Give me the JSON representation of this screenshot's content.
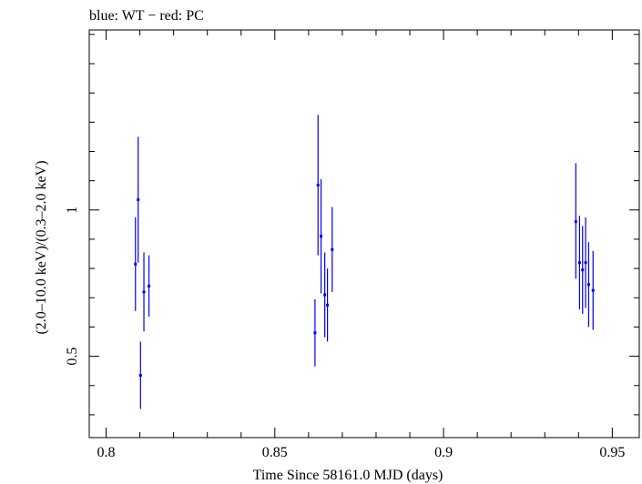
{
  "chart_data": {
    "type": "scatter",
    "title": "blue: WT − red: PC",
    "xlabel": "Time Since 58161.0 MJD (days)",
    "ylabel": "(2.0–10.0 keV)/(0.3–2.0 keV)",
    "xlim": [
      0.795,
      0.958
    ],
    "ylim": [
      0.222,
      1.615
    ],
    "x_ticks": [
      0.8,
      0.85,
      0.9,
      0.95
    ],
    "x_tick_labels": [
      "0.8",
      "0.85",
      "0.9",
      "0.95"
    ],
    "y_ticks": [
      0.5,
      1
    ],
    "y_tick_labels": [
      "0.5",
      "1"
    ],
    "colors": {
      "WT": "#0000ee",
      "frame": "#000000"
    },
    "series": [
      {
        "name": "WT",
        "color": "#0000ee",
        "points": [
          {
            "x": 0.8087,
            "y": 0.815,
            "yerr_low": 0.655,
            "yerr_high": 0.975
          },
          {
            "x": 0.8095,
            "y": 1.035,
            "yerr_low": 0.82,
            "yerr_high": 1.25
          },
          {
            "x": 0.8102,
            "y": 0.435,
            "yerr_low": 0.32,
            "yerr_high": 0.55
          },
          {
            "x": 0.8112,
            "y": 0.72,
            "yerr_low": 0.585,
            "yerr_high": 0.855
          },
          {
            "x": 0.8127,
            "y": 0.74,
            "yerr_low": 0.635,
            "yerr_high": 0.845
          },
          {
            "x": 0.8619,
            "y": 0.58,
            "yerr_low": 0.465,
            "yerr_high": 0.695
          },
          {
            "x": 0.8628,
            "y": 1.085,
            "yerr_low": 0.845,
            "yerr_high": 1.325
          },
          {
            "x": 0.8637,
            "y": 0.91,
            "yerr_low": 0.715,
            "yerr_high": 1.105
          },
          {
            "x": 0.8648,
            "y": 0.71,
            "yerr_low": 0.565,
            "yerr_high": 0.855
          },
          {
            "x": 0.8656,
            "y": 0.675,
            "yerr_low": 0.55,
            "yerr_high": 0.8
          },
          {
            "x": 0.867,
            "y": 0.865,
            "yerr_low": 0.72,
            "yerr_high": 1.01
          },
          {
            "x": 0.9392,
            "y": 0.96,
            "yerr_low": 0.765,
            "yerr_high": 1.16
          },
          {
            "x": 0.9403,
            "y": 0.82,
            "yerr_low": 0.66,
            "yerr_high": 0.98
          },
          {
            "x": 0.9412,
            "y": 0.795,
            "yerr_low": 0.645,
            "yerr_high": 0.945
          },
          {
            "x": 0.9421,
            "y": 0.82,
            "yerr_low": 0.665,
            "yerr_high": 0.975
          },
          {
            "x": 0.943,
            "y": 0.745,
            "yerr_low": 0.6,
            "yerr_high": 0.89
          },
          {
            "x": 0.9443,
            "y": 0.725,
            "yerr_low": 0.59,
            "yerr_high": 0.86
          }
        ]
      }
    ]
  }
}
